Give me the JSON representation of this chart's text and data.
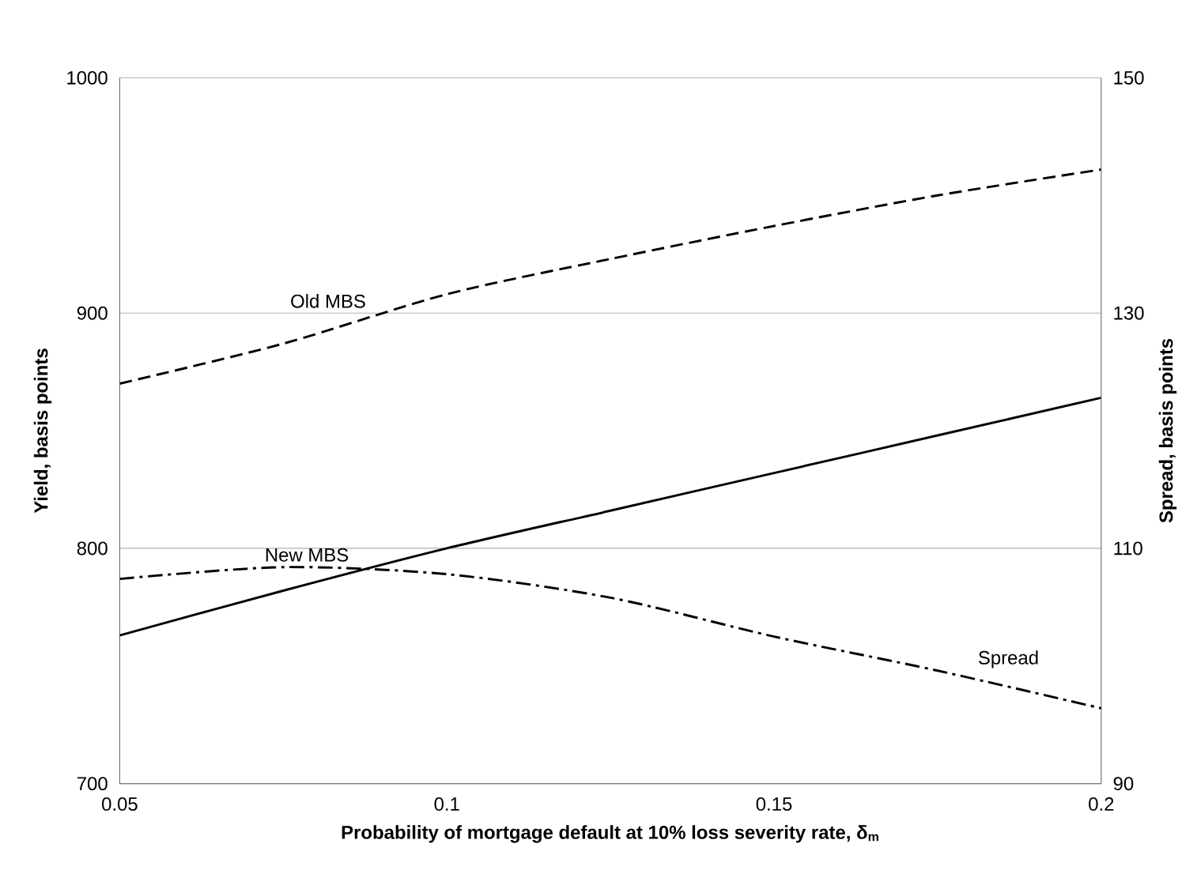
{
  "chart_data": {
    "type": "line",
    "xlabel": "Probability of mortgage default at 10% loss severity rate, δ$_{m}$",
    "ylabel": "Yield, basis points",
    "y2label": "Spread, basis points",
    "x": [
      0.05,
      0.075,
      0.1,
      0.125,
      0.15,
      0.175,
      0.2
    ],
    "series": [
      {
        "name": "Old MBS",
        "color": "#000000",
        "line_style": "dashed",
        "values": [
          870,
          887,
          908,
          923,
          937,
          950,
          961
        ]
      },
      {
        "name": "New MBS",
        "color": "#000000",
        "line_style": "solid",
        "values": [
          763,
          782,
          800,
          816,
          832,
          848,
          864
        ]
      },
      {
        "name": "Spread",
        "color": "#000000",
        "line_style": "dashdot",
        "axis": "y2",
        "values": [
          107.4,
          108.4,
          107.8,
          105.8,
          102.5,
          99.6,
          96.4
        ]
      }
    ],
    "xlim": [
      0.05,
      0.2
    ],
    "xticks": [
      0.05,
      0.1,
      0.15,
      0.2
    ],
    "ylim": [
      700,
      1000
    ],
    "yticks": [
      700,
      800,
      900,
      1000
    ],
    "y2lim": [
      90,
      150
    ],
    "y2ticks": [
      90,
      110,
      130,
      150
    ],
    "grid": "y",
    "marker": "none"
  }
}
